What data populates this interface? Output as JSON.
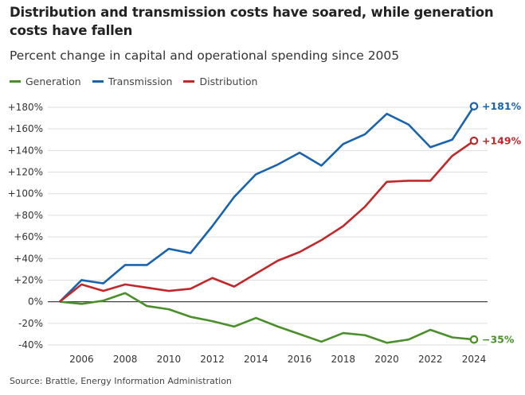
{
  "chart_data": {
    "type": "line",
    "title": "Distribution and transmission costs have soared, while generation costs have fallen",
    "subtitle": "Percent change in capital and operational spending since 2005",
    "source": "Source: Brattle, Energy Information Administration",
    "x": [
      2005,
      2006,
      2007,
      2008,
      2009,
      2010,
      2011,
      2012,
      2013,
      2014,
      2015,
      2016,
      2017,
      2018,
      2019,
      2020,
      2021,
      2022,
      2023,
      2024
    ],
    "xticks": [
      "2006",
      "2008",
      "2010",
      "2012",
      "2014",
      "2016",
      "2018",
      "2020",
      "2022",
      "2024"
    ],
    "yticks": [
      "+180%",
      "+160%",
      "+140%",
      "+120%",
      "+100%",
      "+80%",
      "+60%",
      "+40%",
      "+20%",
      "0%",
      "-20%",
      "-40%"
    ],
    "ylim": [
      -40,
      180
    ],
    "grid": true,
    "legend": "top-left",
    "series": [
      {
        "name": "Generation",
        "color": "#4a8f2a",
        "end_label": "−35%",
        "values": [
          0,
          -2,
          1,
          8,
          -4,
          -7,
          -14,
          -18,
          -23,
          -15,
          -23,
          -30,
          -37,
          -29,
          -31,
          -38,
          -35,
          -26,
          -33,
          -35
        ]
      },
      {
        "name": "Transmission",
        "color": "#1a63ad",
        "end_label": "+181%",
        "values": [
          0,
          20,
          17,
          34,
          34,
          49,
          45,
          70,
          97,
          118,
          127,
          138,
          126,
          146,
          155,
          174,
          164,
          143,
          150,
          181
        ]
      },
      {
        "name": "Distribution",
        "color": "#c0282a",
        "end_label": "+149%",
        "values": [
          0,
          16,
          10,
          16,
          13,
          10,
          12,
          22,
          14,
          26,
          38,
          46,
          57,
          70,
          88,
          111,
          112,
          112,
          135,
          149
        ]
      }
    ]
  }
}
